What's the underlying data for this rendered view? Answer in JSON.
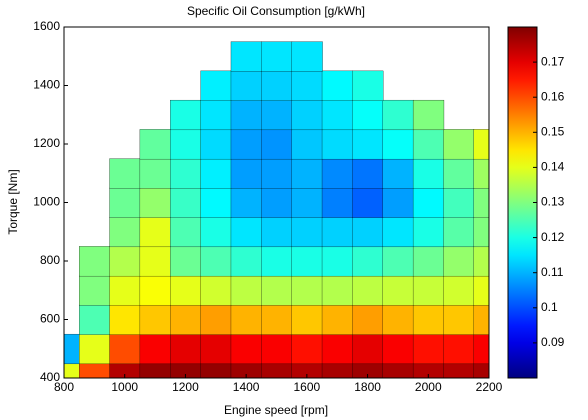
{
  "chart_data": {
    "type": "contour",
    "title": "Specific Oil Consumption [g/kWh]",
    "xlabel": "Engine speed [rpm]",
    "ylabel": "Torque [Nm]",
    "x": [
      800,
      900,
      1000,
      1100,
      1200,
      1300,
      1400,
      1500,
      1600,
      1700,
      1800,
      1900,
      2000,
      2100,
      2200
    ],
    "y": [
      400,
      500,
      600,
      700,
      800,
      900,
      1000,
      1100,
      1200,
      1300,
      1400,
      1500
    ],
    "z": [
      [
        0.14,
        0.16,
        0.175,
        0.178,
        0.178,
        0.178,
        0.177,
        0.176,
        0.175,
        0.176,
        0.177,
        0.176,
        0.175,
        0.175,
        0.176
      ],
      [
        0.11,
        0.14,
        0.16,
        0.168,
        0.17,
        0.17,
        0.168,
        0.168,
        0.166,
        0.168,
        0.17,
        0.168,
        0.166,
        0.166,
        0.168
      ],
      [
        null,
        0.125,
        0.145,
        0.148,
        0.15,
        0.152,
        0.15,
        0.15,
        0.148,
        0.15,
        0.152,
        0.15,
        0.148,
        0.148,
        0.15
      ],
      [
        null,
        0.13,
        0.14,
        0.142,
        0.14,
        0.138,
        0.136,
        0.135,
        0.135,
        0.135,
        0.136,
        0.137,
        0.137,
        0.138,
        0.14
      ],
      [
        null,
        0.13,
        0.135,
        0.14,
        0.128,
        0.125,
        0.122,
        0.12,
        0.12,
        0.12,
        0.122,
        0.125,
        0.128,
        0.132,
        0.135
      ],
      [
        null,
        null,
        0.13,
        0.14,
        0.125,
        0.12,
        0.115,
        0.113,
        0.113,
        0.113,
        0.113,
        0.115,
        0.12,
        0.126,
        0.13
      ],
      [
        null,
        null,
        0.128,
        0.132,
        0.123,
        0.117,
        0.11,
        0.108,
        0.11,
        0.105,
        0.102,
        0.108,
        0.117,
        0.124,
        0.13
      ],
      [
        null,
        null,
        0.128,
        0.128,
        0.122,
        0.116,
        0.108,
        0.108,
        0.11,
        0.106,
        0.104,
        0.11,
        0.12,
        0.127,
        0.133
      ],
      [
        null,
        null,
        null,
        0.127,
        0.12,
        0.114,
        0.108,
        0.107,
        0.112,
        0.114,
        0.115,
        0.118,
        0.125,
        0.132,
        0.14
      ],
      [
        null,
        null,
        null,
        null,
        0.12,
        0.115,
        0.11,
        0.11,
        0.113,
        0.115,
        0.118,
        0.122,
        0.13,
        null,
        null
      ],
      [
        null,
        null,
        null,
        null,
        null,
        0.116,
        0.113,
        0.113,
        0.114,
        0.117,
        0.12,
        null,
        null,
        null,
        null
      ],
      [
        null,
        null,
        null,
        null,
        null,
        null,
        0.115,
        0.115,
        0.115,
        null,
        null,
        null,
        null,
        null,
        null
      ]
    ],
    "xlim": [
      800,
      2200
    ],
    "xticks": [
      800,
      1000,
      1200,
      1400,
      1600,
      1800,
      2000,
      2200
    ],
    "ylim": [
      400,
      1600
    ],
    "yticks": [
      400,
      600,
      800,
      1000,
      1200,
      1400,
      1600
    ],
    "colormap": "jet",
    "clim": [
      0.08,
      0.18
    ],
    "cticks": [
      0.09,
      0.1,
      0.11,
      0.12,
      0.13,
      0.14,
      0.15,
      0.16,
      0.17
    ]
  }
}
